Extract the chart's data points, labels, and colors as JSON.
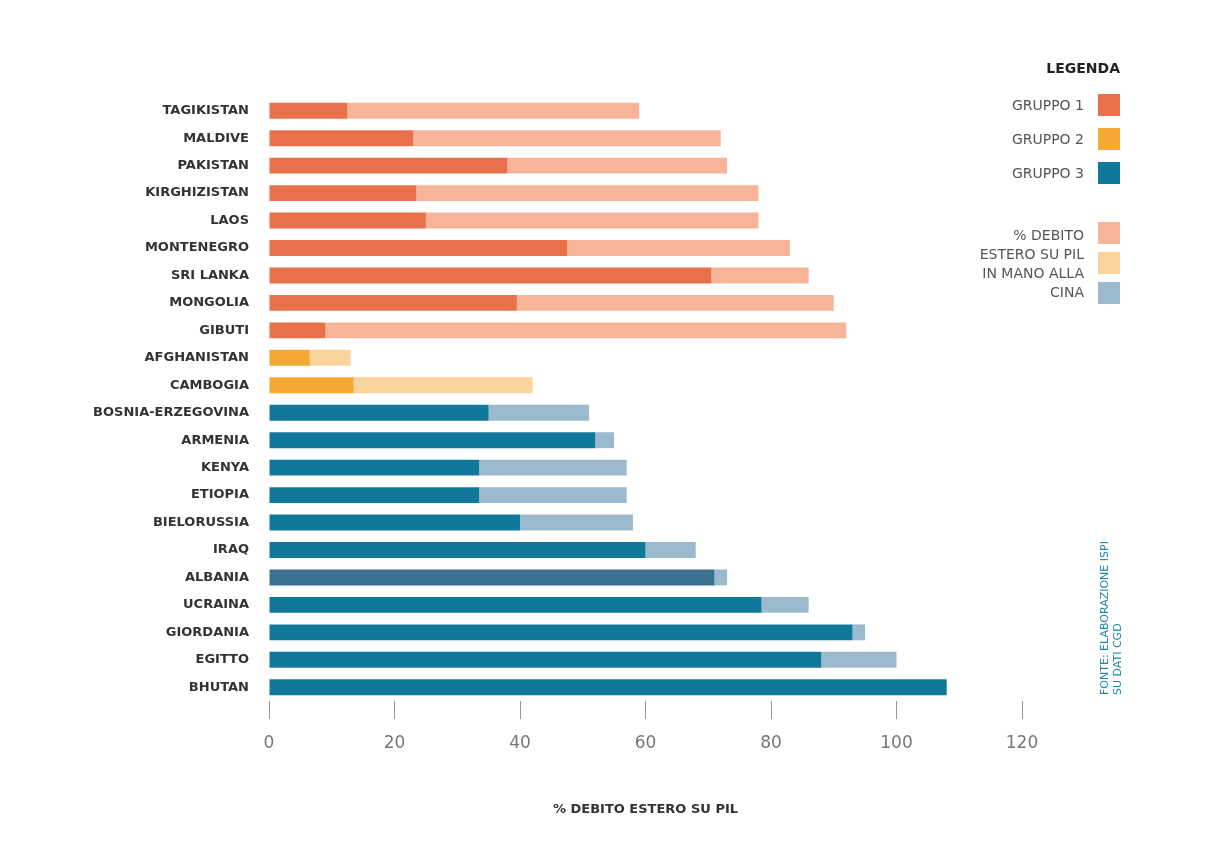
{
  "chart_data": {
    "type": "bar",
    "orientation": "horizontal",
    "stacked": true,
    "categories": [
      "TAGIKISTAN",
      "MALDIVE",
      "PAKISTAN",
      "KIRGHIZISTAN",
      "LAOS",
      "MONTENEGRO",
      "SRI LANKA",
      "MONGOLIA",
      "GIBUTI",
      "AFGHANISTAN",
      "CAMBOGIA",
      "BOSNIA-ERZEGOVINA",
      "ARMENIA",
      "KENYA",
      "ETIOPIA",
      "BIELORUSSIA",
      "IRAQ",
      "ALBANIA",
      "UCRAINA",
      "GIORDANIA",
      "EGITTO",
      "BHUTAN"
    ],
    "series": [
      {
        "name": "GRUPPO 1",
        "color": "#e8704a",
        "values": [
          12.5,
          23,
          38,
          23.5,
          25,
          47.5,
          70.5,
          39.5,
          9,
          null,
          null,
          null,
          null,
          null,
          null,
          null,
          null,
          null,
          null,
          null,
          null,
          null
        ]
      },
      {
        "name": "GRUPPO 2",
        "color": "#f5a833",
        "values": [
          null,
          null,
          null,
          null,
          null,
          null,
          null,
          null,
          null,
          6.5,
          13.5,
          null,
          null,
          null,
          null,
          null,
          null,
          null,
          null,
          null,
          null,
          null
        ]
      },
      {
        "name": "GRUPPO 3",
        "color": "#10799b",
        "colors": [
          "#10799b",
          "#10799b",
          "#10799b",
          "#10799b",
          "#10799b",
          "#10799b",
          "#10799b",
          "#10799b",
          "#10799b",
          "#10799b",
          "#10799b",
          "#10799b",
          "#10799b",
          "#10799b",
          "#10799b",
          "#10799b",
          "#10799b",
          "#3a7191",
          "#10799b",
          "#10799b",
          "#10799b",
          "#10799b"
        ],
        "values": [
          null,
          null,
          null,
          null,
          null,
          null,
          null,
          null,
          null,
          null,
          null,
          35,
          52,
          33.5,
          33.5,
          40,
          60,
          71,
          78.5,
          93,
          88,
          108
        ]
      },
      {
        "name": "% DEBITO ESTERO SU PIL IN MANO ALLA CINA",
        "color": "#f8b499",
        "values": [
          46.5,
          49,
          35,
          54.5,
          53,
          35.5,
          15.5,
          50.5,
          83,
          null,
          null,
          null,
          null,
          null,
          null,
          null,
          null,
          null,
          null,
          null,
          null,
          null
        ]
      },
      {
        "color": "#fbd49d",
        "values": [
          null,
          null,
          null,
          null,
          null,
          null,
          null,
          null,
          null,
          6.5,
          28.5,
          null,
          null,
          null,
          null,
          null,
          null,
          null,
          null,
          null,
          null,
          null
        ]
      },
      {
        "color": "#9bbacd",
        "values": [
          null,
          null,
          null,
          null,
          null,
          null,
          null,
          null,
          null,
          null,
          null,
          16,
          3,
          23.5,
          23.5,
          18,
          8,
          2,
          7.5,
          2,
          12,
          null
        ]
      }
    ],
    "xlim": [
      0,
      120
    ],
    "xticks": [
      0,
      20,
      40,
      60,
      80,
      100,
      120
    ],
    "xlabel": "% DEBITO ESTERO SU PIL",
    "legend": "top right",
    "legend_title": "LEGENDA",
    "annotations": [
      "FONTE: ELABORAZIONE ISPI SU DATI CGD"
    ]
  }
}
